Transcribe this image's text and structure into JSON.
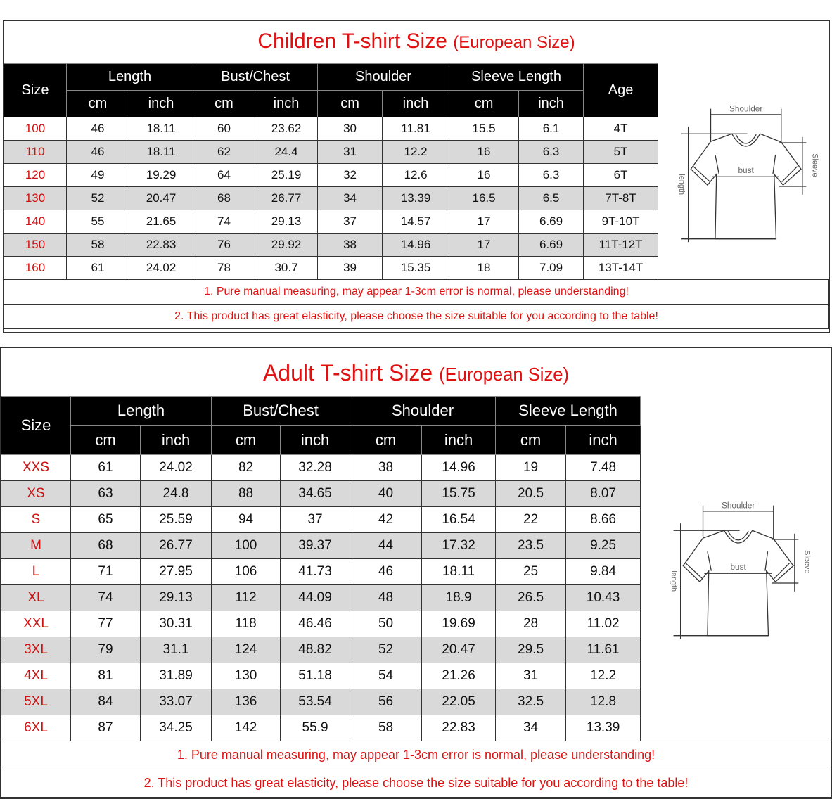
{
  "children": {
    "title": "Children T-shirt Size",
    "title_sub": "(European Size)",
    "headers": {
      "size": "Size",
      "length": "Length",
      "bust": "Bust/Chest",
      "shoulder": "Shoulder",
      "sleeve": "Sleeve Length",
      "age": "Age",
      "cm": "cm",
      "inch": "inch"
    },
    "rows": [
      [
        "100",
        "46",
        "18.11",
        "60",
        "23.62",
        "30",
        "11.81",
        "15.5",
        "6.1",
        "4T"
      ],
      [
        "110",
        "46",
        "18.11",
        "62",
        "24.4",
        "31",
        "12.2",
        "16",
        "6.3",
        "5T"
      ],
      [
        "120",
        "49",
        "19.29",
        "64",
        "25.19",
        "32",
        "12.6",
        "16",
        "6.3",
        "6T"
      ],
      [
        "130",
        "52",
        "20.47",
        "68",
        "26.77",
        "34",
        "13.39",
        "16.5",
        "6.5",
        "7T-8T"
      ],
      [
        "140",
        "55",
        "21.65",
        "74",
        "29.13",
        "37",
        "14.57",
        "17",
        "6.69",
        "9T-10T"
      ],
      [
        "150",
        "58",
        "22.83",
        "76",
        "29.92",
        "38",
        "14.96",
        "17",
        "6.69",
        "11T-12T"
      ],
      [
        "160",
        "61",
        "24.02",
        "78",
        "30.7",
        "39",
        "15.35",
        "18",
        "7.09",
        "13T-14T"
      ]
    ],
    "notes": [
      "1. Pure manual measuring, may appear 1-3cm error is normal, please understanding!",
      "2. This product has great elasticity, please choose the size suitable for you according to the table!"
    ]
  },
  "adult": {
    "title": "Adult T-shirt Size",
    "title_sub": "(European Size)",
    "headers": {
      "size": "Size",
      "length": "Length",
      "bust": "Bust/Chest",
      "shoulder": "Shoulder",
      "sleeve": "Sleeve Length",
      "cm": "cm",
      "inch": "inch"
    },
    "rows": [
      [
        "XXS",
        "61",
        "24.02",
        "82",
        "32.28",
        "38",
        "14.96",
        "19",
        "7.48"
      ],
      [
        "XS",
        "63",
        "24.8",
        "88",
        "34.65",
        "40",
        "15.75",
        "20.5",
        "8.07"
      ],
      [
        "S",
        "65",
        "25.59",
        "94",
        "37",
        "42",
        "16.54",
        "22",
        "8.66"
      ],
      [
        "M",
        "68",
        "26.77",
        "100",
        "39.37",
        "44",
        "17.32",
        "23.5",
        "9.25"
      ],
      [
        "L",
        "71",
        "27.95",
        "106",
        "41.73",
        "46",
        "18.11",
        "25",
        "9.84"
      ],
      [
        "XL",
        "74",
        "29.13",
        "112",
        "44.09",
        "48",
        "18.9",
        "26.5",
        "10.43"
      ],
      [
        "XXL",
        "77",
        "30.31",
        "118",
        "46.46",
        "50",
        "19.69",
        "28",
        "11.02"
      ],
      [
        "3XL",
        "79",
        "31.1",
        "124",
        "48.82",
        "52",
        "20.47",
        "29.5",
        "11.61"
      ],
      [
        "4XL",
        "81",
        "31.89",
        "130",
        "51.18",
        "54",
        "21.26",
        "31",
        "12.2"
      ],
      [
        "5XL",
        "84",
        "33.07",
        "136",
        "53.54",
        "56",
        "22.05",
        "32.5",
        "12.8"
      ],
      [
        "6XL",
        "87",
        "34.25",
        "142",
        "55.9",
        "58",
        "22.83",
        "34",
        "13.39"
      ]
    ],
    "notes": [
      "1. Pure manual measuring, may appear 1-3cm error is normal, please understanding!",
      "2. This product has great elasticity, please choose the size suitable for you according to the table!"
    ]
  },
  "diagram": {
    "shoulder": "Shoulder",
    "bust": "bust",
    "sleeve": "Sleeve",
    "length": "length"
  },
  "colors": {
    "accent_red": "#e01010",
    "header_bg": "#000000",
    "alt_row": "#d9d9d9"
  }
}
